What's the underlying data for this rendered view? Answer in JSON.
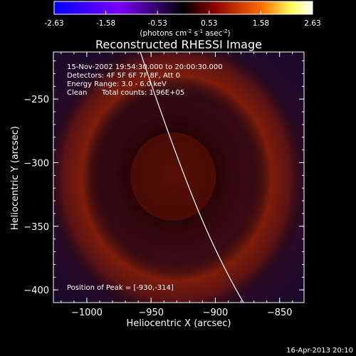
{
  "colorbar": {
    "tick_labels": [
      "-2.63",
      "-1.58",
      "-0.53",
      "0.53",
      "1.58",
      "2.63"
    ],
    "unit_label_main": "(photons cm",
    "unit_exp1": "-2",
    "unit_mid": " s",
    "unit_exp2": "-1",
    "unit_tail": " asec",
    "unit_exp3": "-2",
    "unit_close": ")",
    "colors": [
      "#0000ff",
      "#7000ff",
      "#000000",
      "#7a0000",
      "#ff6a00",
      "#ffff80",
      "#ffffff"
    ]
  },
  "title": "Reconstructed RHESSI Image",
  "info": {
    "time_range": "15-Nov-2002 19:54:30.000 to 20:00:30.000",
    "detectors": "Detectors: 4F 5F 6F 7F 8F, Att 0",
    "energy": "Energy Range: 3.0 - 6.0 keV",
    "clean": "Clean",
    "counts": "Total counts: 1.96E+05",
    "peak": "Position of Peak = [-930,-314]"
  },
  "axes": {
    "xlabel": "Heliocentric X (arcsec)",
    "ylabel": "Heliocentric Y (arcsec)",
    "xticks": [
      {
        "value": -1000,
        "label": "−1000"
      },
      {
        "value": -950,
        "label": "−950"
      },
      {
        "value": -900,
        "label": "−900"
      },
      {
        "value": -850,
        "label": "−850"
      }
    ],
    "yticks": [
      {
        "value": -250,
        "label": "−250"
      },
      {
        "value": -300,
        "label": "−300"
      },
      {
        "value": -350,
        "label": "−350"
      },
      {
        "value": -400,
        "label": "−400"
      }
    ],
    "xlim": [
      -1026,
      -831
    ],
    "ylim": [
      -410,
      -213
    ]
  },
  "image": {
    "peak_x": -930,
    "peak_y": -314
  },
  "footer_date": "16-Apr-2013 20:10"
}
